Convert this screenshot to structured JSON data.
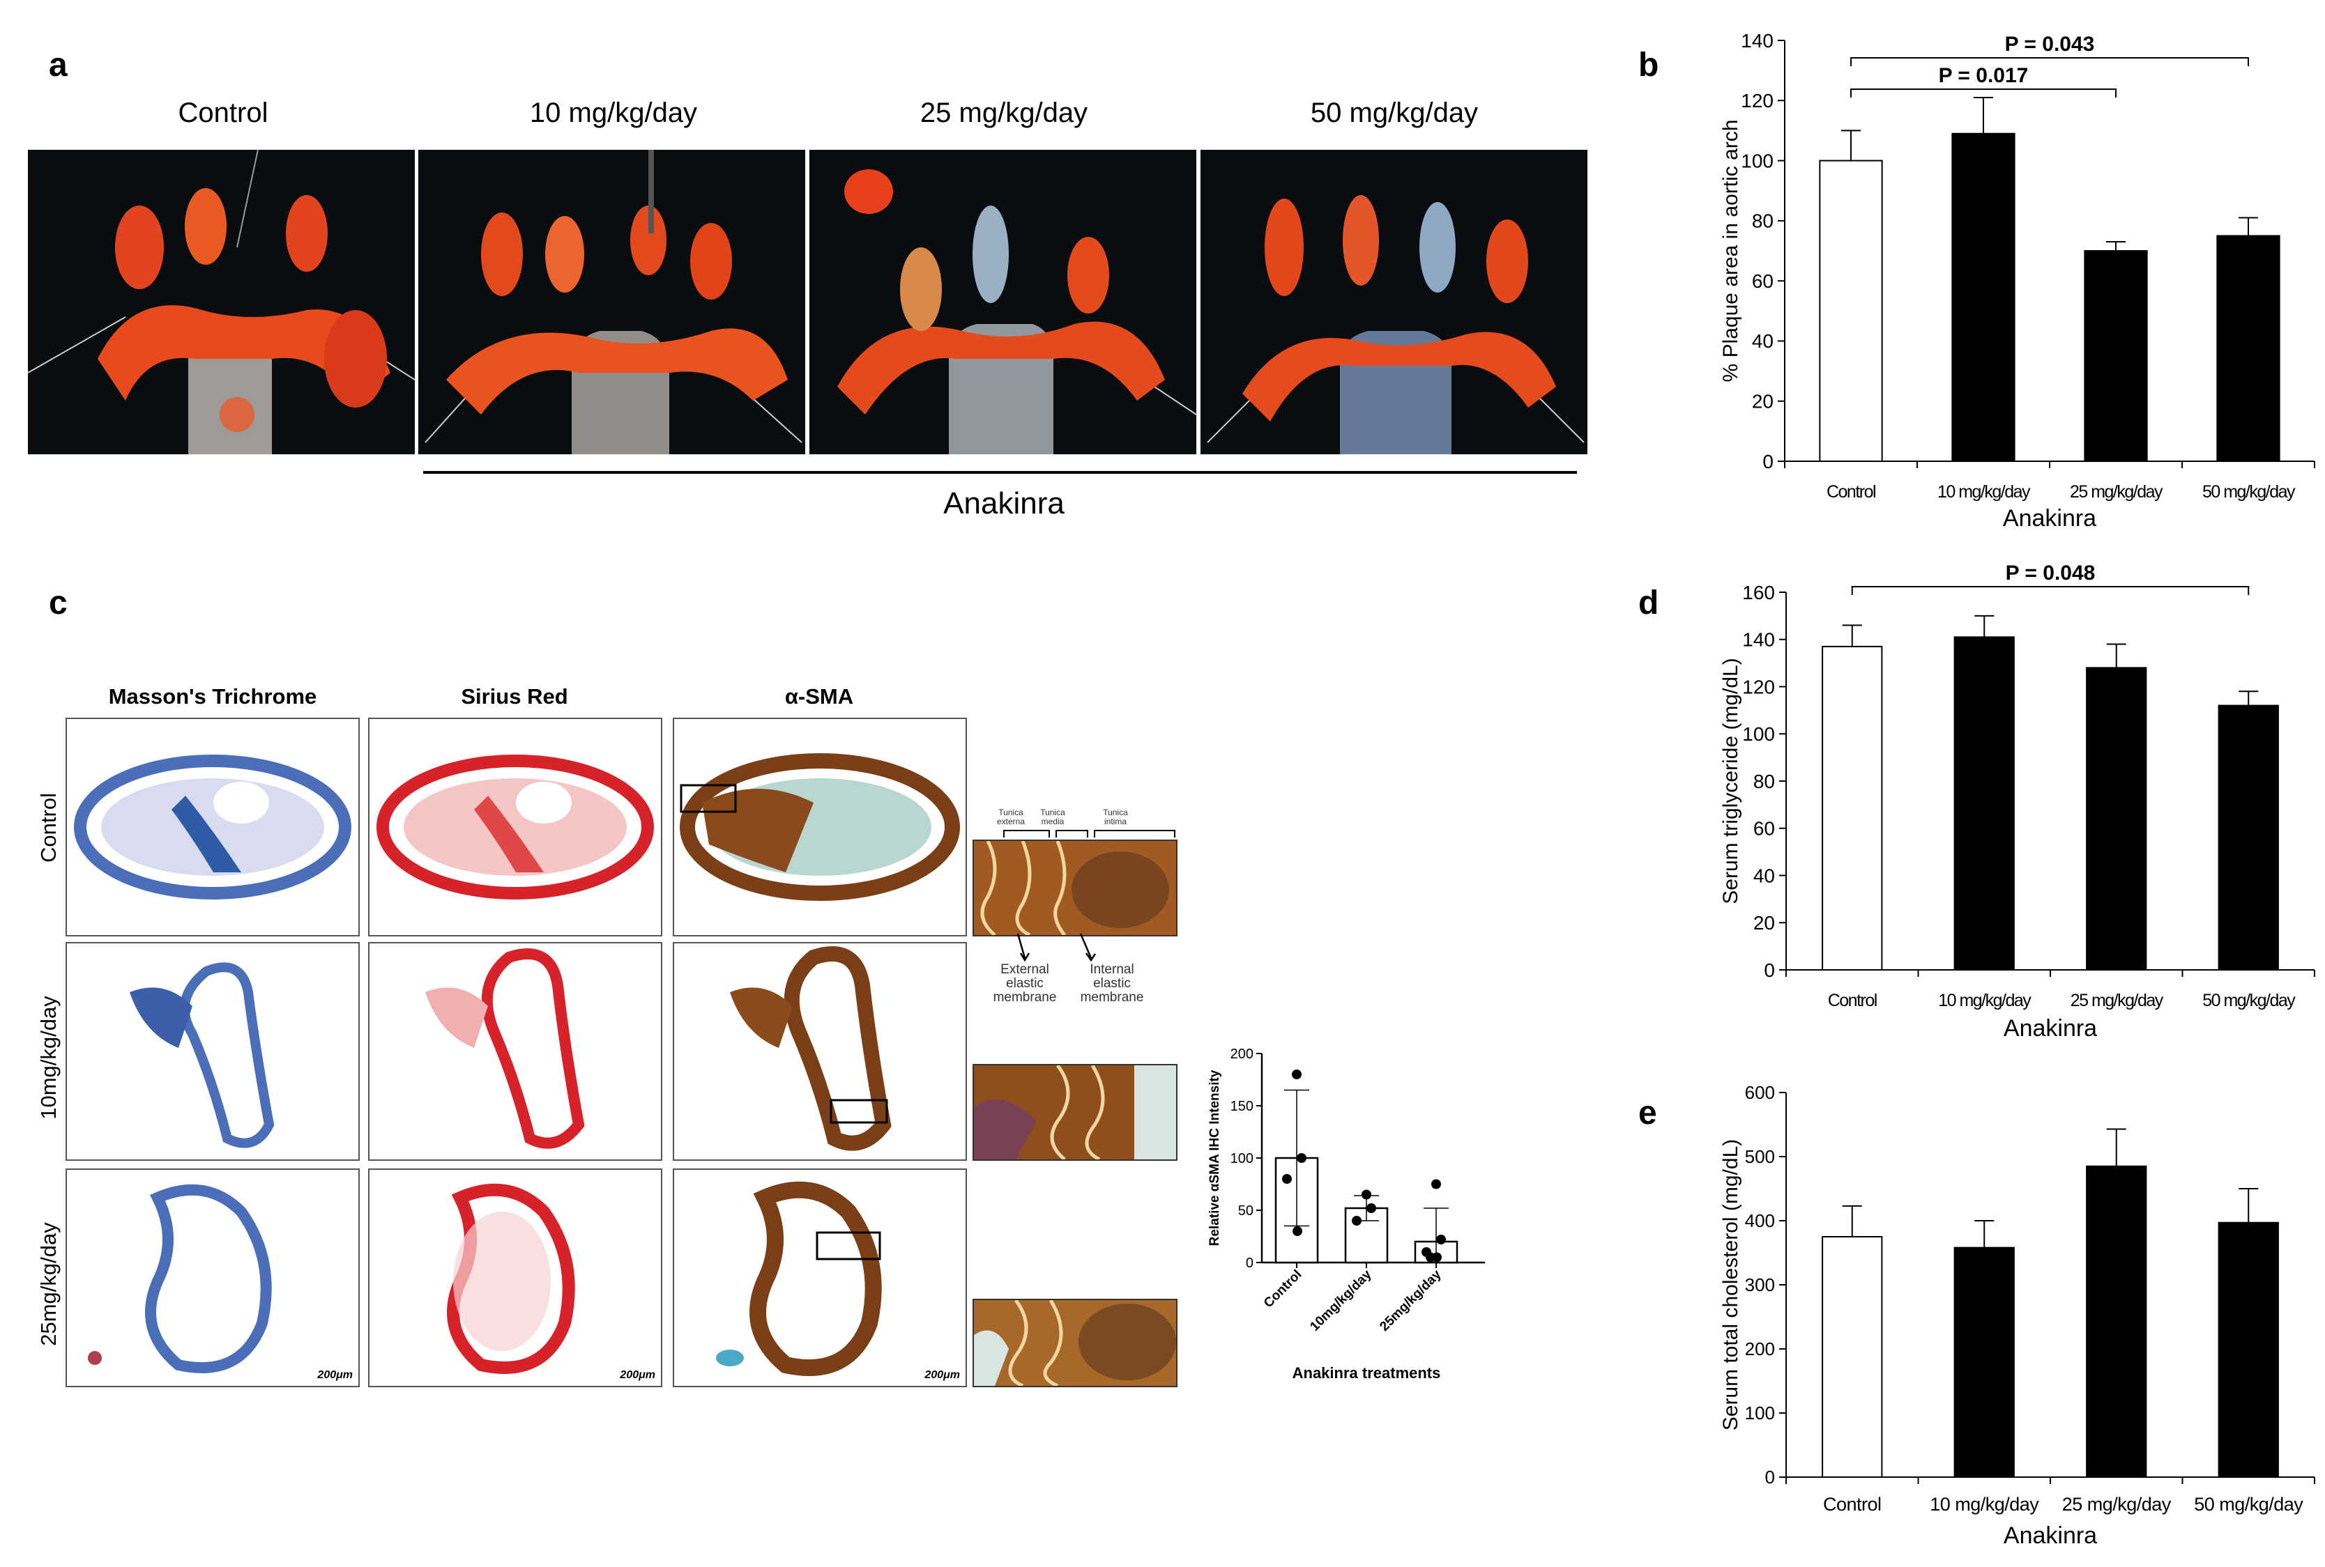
{
  "panels": {
    "a": {
      "letter": "a",
      "groups": [
        "Control",
        "10 mg/kg/day",
        "25 mg/kg/day",
        "50 mg/kg/day"
      ],
      "treatment_label": "Anakinra"
    },
    "b": {
      "letter": "b"
    },
    "c": {
      "letter": "c",
      "stains": [
        "Masson's Trichrome",
        "Sirius Red",
        "α-SMA"
      ],
      "rows": [
        "Control",
        "10mg/kg/day",
        "25mg/kg/day"
      ],
      "scale": "200μm",
      "zoom_labels": {
        "tunica_externa": "Tunica externa",
        "tunica_media": "Tunica media",
        "tunica_intima": "Tunica intima",
        "external_membrane": "External elastic membrane",
        "internal_membrane": "Internal elastic membrane"
      }
    },
    "d": {
      "letter": "d"
    },
    "e": {
      "letter": "e"
    }
  },
  "colors": {
    "bar_filled": "#000000",
    "bar_open": "#ffffff",
    "masson_blue": "#3b6fb6",
    "sirius_red": "#d8222a",
    "sma_brown": "#7a3f16",
    "plaque_red": "#e8401c"
  },
  "chart_data": [
    {
      "id": "b",
      "type": "bar",
      "categories": [
        "Control",
        "10 mg/kg/day",
        "25 mg/kg/day",
        "50 mg/kg/day"
      ],
      "values": [
        100,
        109,
        70,
        75
      ],
      "errors": [
        10,
        12,
        3,
        6
      ],
      "fills": [
        "open",
        "filled",
        "filled",
        "filled"
      ],
      "ylabel": "% Plaque area in aortic arch",
      "xlabel": "Anakinra",
      "ylim": [
        0,
        140
      ],
      "yticks": [
        0,
        20,
        40,
        60,
        80,
        100,
        120,
        140
      ],
      "annotations": [
        {
          "text": "P = 0.017",
          "from": 0,
          "to": 2
        },
        {
          "text": "P = 0.043",
          "from": 0,
          "to": 3
        }
      ]
    },
    {
      "id": "d",
      "type": "bar",
      "categories": [
        "Control",
        "10 mg/kg/day",
        "25 mg/kg/day",
        "50 mg/kg/day"
      ],
      "values": [
        137,
        141,
        128,
        112
      ],
      "errors": [
        9,
        9,
        10,
        6
      ],
      "fills": [
        "open",
        "filled",
        "filled",
        "filled"
      ],
      "ylabel": "Serum triglyceride (mg/dL)",
      "xlabel": "Anakinra",
      "ylim": [
        0,
        160
      ],
      "yticks": [
        0,
        20,
        40,
        60,
        80,
        100,
        120,
        140,
        160
      ],
      "annotations": [
        {
          "text": "P = 0.048",
          "from": 0,
          "to": 3
        }
      ]
    },
    {
      "id": "e",
      "type": "bar",
      "categories": [
        "Control",
        "10 mg/kg/day",
        "25 mg/kg/day",
        "50 mg/kg/day"
      ],
      "values": [
        375,
        358,
        485,
        397
      ],
      "errors": [
        48,
        42,
        58,
        53
      ],
      "fills": [
        "open",
        "filled",
        "filled",
        "filled"
      ],
      "ylabel": "Serum total cholesterol (mg/dL)",
      "xlabel": "Anakinra",
      "ylim": [
        0,
        600
      ],
      "yticks": [
        0,
        100,
        200,
        300,
        400,
        500,
        600
      ],
      "annotations": []
    },
    {
      "id": "c-inset",
      "type": "bar",
      "categories": [
        "Control",
        "10mg/kg/day",
        "25mg/kg/day"
      ],
      "values": [
        100,
        52,
        20
      ],
      "errors": [
        65,
        12,
        32
      ],
      "points": [
        [
          180,
          100,
          80,
          30
        ],
        [
          65,
          52,
          40
        ],
        [
          75,
          22,
          10,
          5,
          5
        ]
      ],
      "ylabel": "Relative αSMA IHC Intensity",
      "xlabel": "Anakinra treatments",
      "ylim": [
        0,
        200
      ],
      "yticks": [
        0,
        50,
        100,
        150,
        200
      ]
    }
  ]
}
